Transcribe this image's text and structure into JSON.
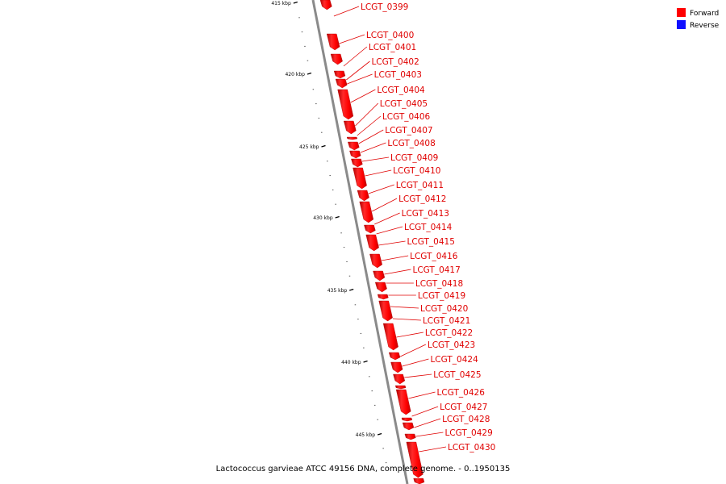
{
  "legend": {
    "forward_label": "Forward",
    "reverse_label": "Reverse",
    "forward_color": "#ff0000",
    "reverse_color": "#1010ff"
  },
  "caption": "Lactococcus garvieae ATCC 49156 DNA, complete genome. - 0..1950135",
  "ticks": [
    {
      "kbp": 415,
      "label": "415 kbp"
    },
    {
      "kbp": 420,
      "label": "420 kbp"
    },
    {
      "kbp": 425,
      "label": "425 kbp"
    },
    {
      "kbp": 430,
      "label": "430 kbp"
    },
    {
      "kbp": 435,
      "label": "435 kbp"
    },
    {
      "kbp": 440,
      "label": "440 kbp"
    },
    {
      "kbp": 445,
      "label": "445 kbp"
    }
  ],
  "genes": [
    {
      "label": "LCGT_0399"
    },
    {
      "label": "LCGT_0400"
    },
    {
      "label": "LCGT_0401"
    },
    {
      "label": "LCGT_0402"
    },
    {
      "label": "LCGT_0403"
    },
    {
      "label": "LCGT_0404"
    },
    {
      "label": "LCGT_0405"
    },
    {
      "label": "LCGT_0406"
    },
    {
      "label": "LCGT_0407"
    },
    {
      "label": "LCGT_0408"
    },
    {
      "label": "LCGT_0409"
    },
    {
      "label": "LCGT_0410"
    },
    {
      "label": "LCGT_0411"
    },
    {
      "label": "LCGT_0412"
    },
    {
      "label": "LCGT_0413"
    },
    {
      "label": "LCGT_0414"
    },
    {
      "label": "LCGT_0415"
    },
    {
      "label": "LCGT_0416"
    },
    {
      "label": "LCGT_0417"
    },
    {
      "label": "LCGT_0418"
    },
    {
      "label": "LCGT_0419"
    },
    {
      "label": "LCGT_0420"
    },
    {
      "label": "LCGT_0421"
    },
    {
      "label": "LCGT_0422"
    },
    {
      "label": "LCGT_0423"
    },
    {
      "label": "LCGT_0424"
    },
    {
      "label": "LCGT_0425"
    },
    {
      "label": "LCGT_0426"
    },
    {
      "label": "LCGT_0427"
    },
    {
      "label": "LCGT_0428"
    },
    {
      "label": "LCGT_0429"
    },
    {
      "label": "LCGT_0430"
    }
  ]
}
